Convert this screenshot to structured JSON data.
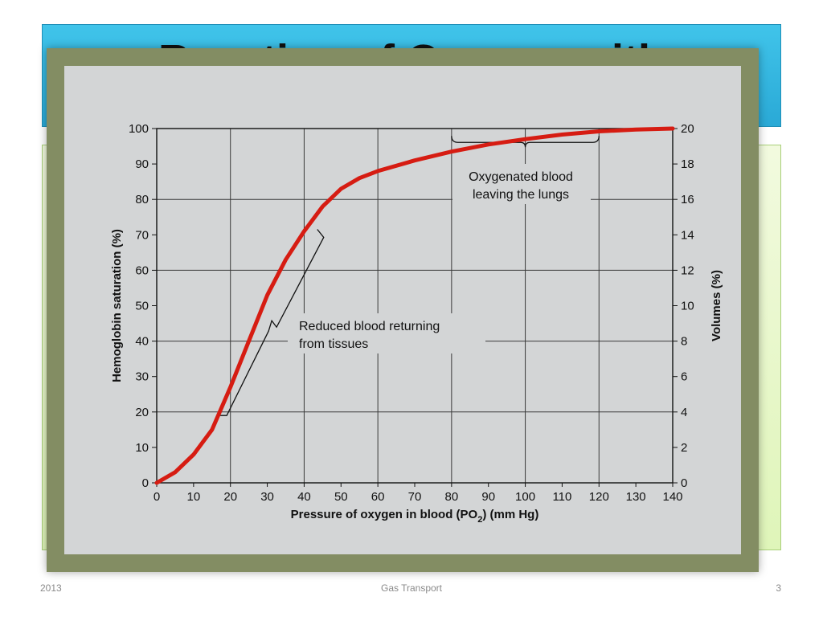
{
  "slide": {
    "title": "Reaction of Oxygen with",
    "footer_left": "2013",
    "footer_center": "Gas Transport",
    "footer_right": "3"
  },
  "colors": {
    "title_banner": "#35b8e3",
    "content_box": "#e8f7cc",
    "frame": "#838d63",
    "plot_bg": "#d3d5d6",
    "curve": "#d61c12"
  },
  "chart_data": {
    "type": "line",
    "title": "",
    "xlabel": "Pressure of oxygen in blood (PO",
    "xlabel_sub": "2",
    "xlabel_tail": ") (mm Hg)",
    "ylabel": "Hemoglobin saturation (%)",
    "ylabel_right": "Volumes (%)",
    "xlim": [
      0,
      140
    ],
    "ylim": [
      0,
      100
    ],
    "ylim_right": [
      0,
      20
    ],
    "x_ticks": [
      0,
      10,
      20,
      30,
      40,
      50,
      60,
      70,
      80,
      90,
      100,
      110,
      120,
      130,
      140
    ],
    "y_ticks": [
      0,
      10,
      20,
      30,
      40,
      50,
      60,
      70,
      80,
      90,
      100
    ],
    "y_ticks_right": [
      0,
      2,
      4,
      6,
      8,
      10,
      12,
      14,
      16,
      18,
      20
    ],
    "grid_x": [
      20,
      40,
      60,
      80,
      100,
      120
    ],
    "grid_y": [
      20,
      40,
      60,
      80
    ],
    "grid": true,
    "series": [
      {
        "x": [
          0,
          5,
          10,
          15,
          20,
          25,
          30,
          35,
          40,
          45,
          50,
          55,
          60,
          70,
          80,
          90,
          100,
          110,
          120,
          130,
          140
        ],
        "y": [
          0,
          3,
          8,
          15,
          27,
          40,
          53,
          63,
          71,
          78,
          83,
          86,
          88,
          91,
          93.5,
          95.5,
          97,
          98.3,
          99.2,
          99.7,
          100
        ]
      }
    ],
    "annotations": [
      {
        "lines": [
          "Oxygenated blood",
          "leaving the lungs"
        ],
        "bracket_x": [
          80,
          120
        ],
        "bracket_y": 97
      },
      {
        "lines": [
          "Reduced blood returning",
          "from tissues"
        ],
        "bracket_from": [
          19,
          19
        ],
        "bracket_to": [
          44,
          72
        ]
      }
    ]
  }
}
